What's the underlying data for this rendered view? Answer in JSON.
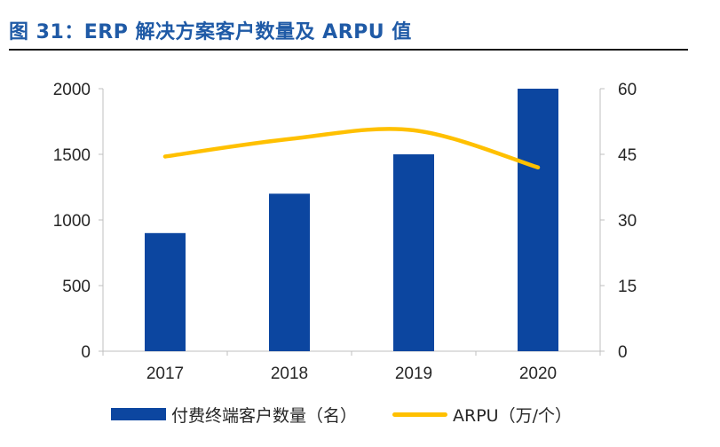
{
  "figure_title": "图 31：ERP 解决方案客户数量及 ARPU 值",
  "colors": {
    "bar": "#0c46a0",
    "line": "#ffc000",
    "title": "#1f5aa6",
    "axis": "#bfbfbf"
  },
  "chart_data": {
    "type": "bar",
    "title": "图 31：ERP 解决方案客户数量及 ARPU 值",
    "categories": [
      "2017",
      "2018",
      "2019",
      "2020"
    ],
    "series": [
      {
        "name": "付费终端客户数量（名）",
        "type": "bar",
        "axis": "left",
        "values": [
          900,
          1200,
          1500,
          2000
        ]
      },
      {
        "name": "ARPU（万/个）",
        "type": "line",
        "smooth": true,
        "axis": "right",
        "values": [
          44.5,
          48.5,
          50.5,
          42
        ]
      }
    ],
    "left_axis": {
      "ylim": [
        0,
        2000
      ],
      "ticks": [
        "0",
        "500",
        "1000",
        "1500",
        "2000"
      ]
    },
    "right_axis": {
      "ylim": [
        0,
        60
      ],
      "ticks": [
        "0",
        "15",
        "30",
        "45",
        "60"
      ]
    },
    "xlabel": "",
    "ylabel": "",
    "grid": false,
    "legend_position": "bottom"
  }
}
